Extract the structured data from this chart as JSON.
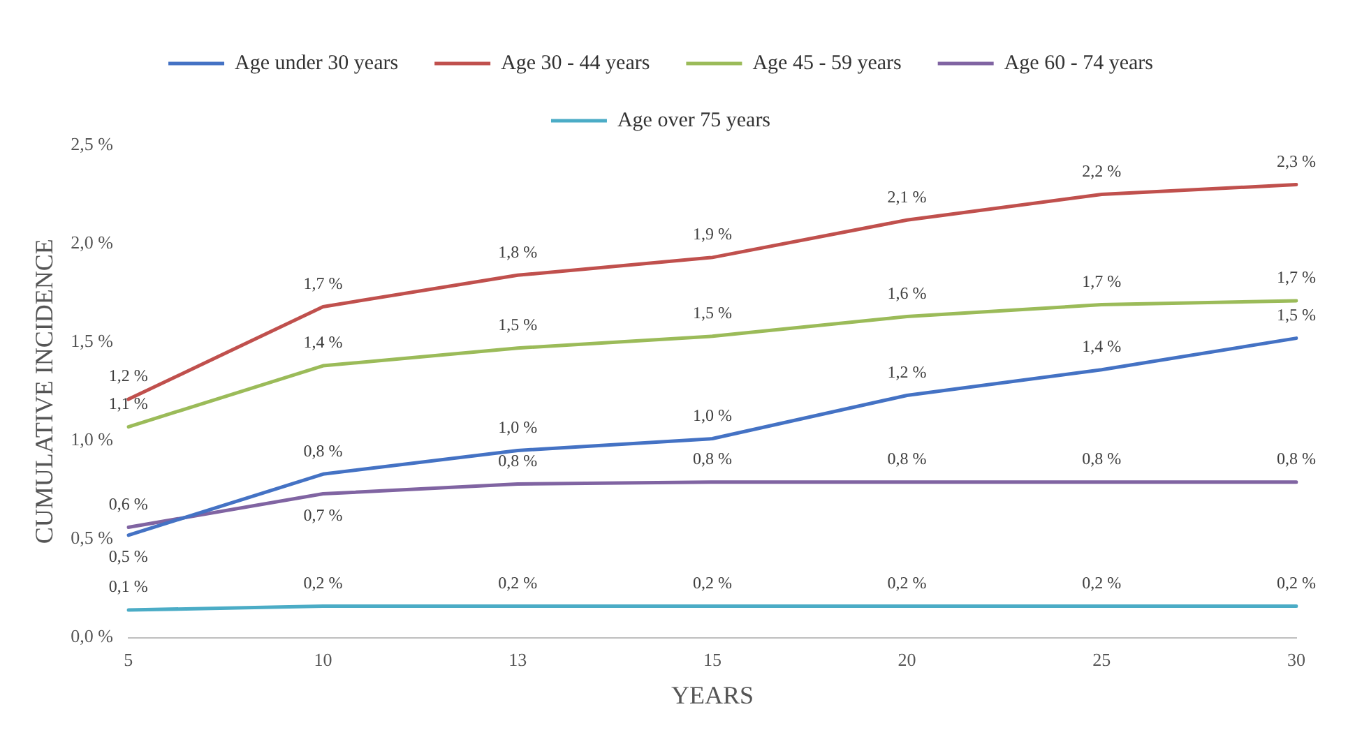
{
  "chart_data": {
    "type": "line",
    "xlabel": "YEARS",
    "ylabel": "CUMULATIVE INCIDENCE",
    "categories": [
      "5",
      "10",
      "13",
      "15",
      "20",
      "25",
      "30"
    ],
    "series": [
      {
        "name": "Age under 30 years",
        "color": "#4472c4",
        "values": [
          0.52,
          0.83,
          0.95,
          1.01,
          1.23,
          1.36,
          1.52
        ],
        "value_labels": [
          "0,5 %",
          "0,8 %",
          "1,0 %",
          "1,0 %",
          "1,2 %",
          "1,4 %",
          "1,5 %"
        ]
      },
      {
        "name": "Age 30 - 44 years",
        "color": "#c0504d",
        "values": [
          1.21,
          1.68,
          1.84,
          1.93,
          2.12,
          2.25,
          2.3
        ],
        "value_labels": [
          "1,2 %",
          "1,7 %",
          "1,8 %",
          "1,9 %",
          "2,1 %",
          "2,2 %",
          "2,3 %"
        ]
      },
      {
        "name": "Age 45 - 59 years",
        "color": "#9bbb59",
        "values": [
          1.07,
          1.38,
          1.47,
          1.53,
          1.63,
          1.69,
          1.71
        ],
        "value_labels": [
          "1,1 %",
          "1,4 %",
          "1,5 %",
          "1,5 %",
          "1,6 %",
          "1,7 %",
          "1,7 %"
        ]
      },
      {
        "name": "Age 60 - 74 years",
        "color": "#8064a2",
        "values": [
          0.56,
          0.73,
          0.78,
          0.79,
          0.79,
          0.79,
          0.79
        ],
        "value_labels": [
          "0,6 %",
          "0,7 %",
          "0,8 %",
          "0,8 %",
          "0,8 %",
          "0,8 %",
          "0,8 %"
        ]
      },
      {
        "name": "Age over 75 years",
        "color": "#4bacc6",
        "values": [
          0.14,
          0.16,
          0.16,
          0.16,
          0.16,
          0.16,
          0.16
        ],
        "value_labels": [
          "0,1 %",
          "0,2 %",
          "0,2 %",
          "0,2 %",
          "0,2 %",
          "0,2 %",
          "0,2 %"
        ]
      }
    ],
    "ylim": [
      0,
      2.5
    ],
    "yticks": [
      {
        "value": 0,
        "label": "0,0 %"
      },
      {
        "value": 0.5,
        "label": "0,5 %"
      },
      {
        "value": 1,
        "label": "1,0 %"
      },
      {
        "value": 1.5,
        "label": "1,5 %"
      },
      {
        "value": 2,
        "label": "2,0 %"
      },
      {
        "value": 2.5,
        "label": "2,5 %"
      }
    ],
    "grid": false,
    "legend": "top",
    "marker": "none",
    "line_style": "solid"
  }
}
